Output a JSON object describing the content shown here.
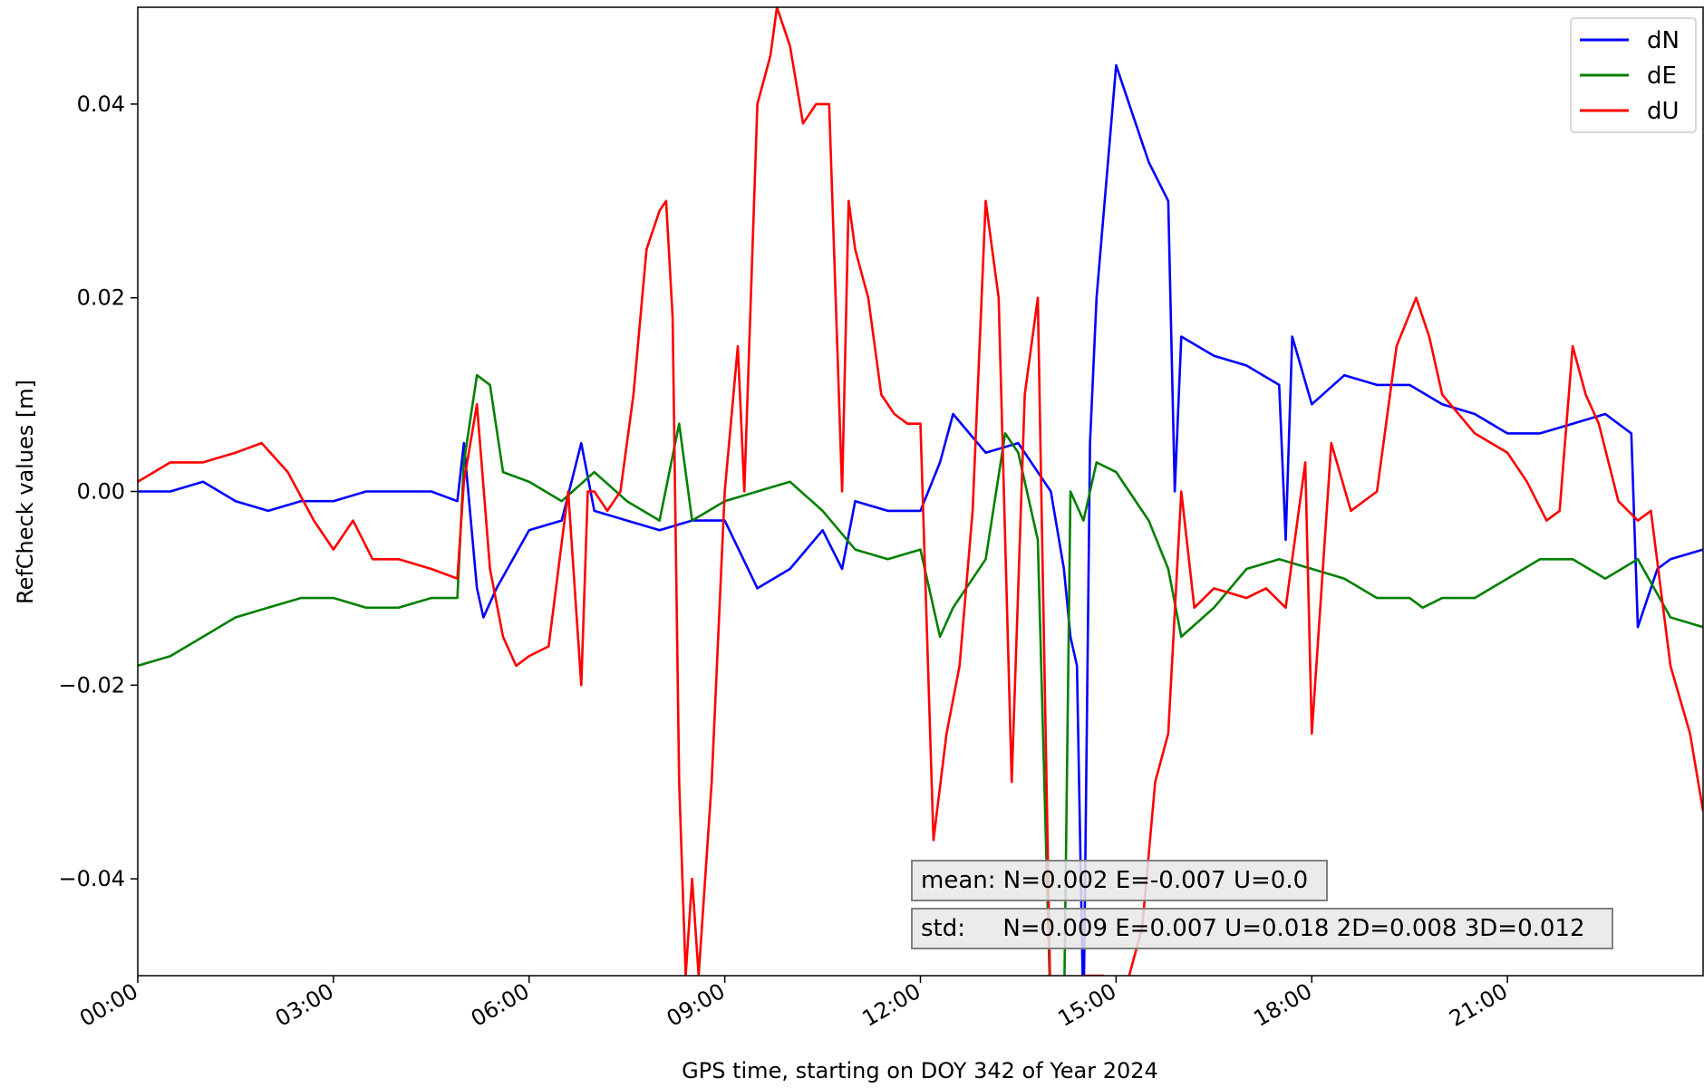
{
  "chart_data": {
    "type": "line",
    "xlabel": "GPS time, starting on DOY 342 of Year 2024",
    "ylabel": "RefCheck values [m]",
    "xlim_hours": [
      0,
      24
    ],
    "ylim": [
      -0.05,
      0.05
    ],
    "x_ticks": [
      {
        "hour": 0,
        "label": "00:00"
      },
      {
        "hour": 3,
        "label": "03:00"
      },
      {
        "hour": 6,
        "label": "06:00"
      },
      {
        "hour": 9,
        "label": "09:00"
      },
      {
        "hour": 12,
        "label": "12:00"
      },
      {
        "hour": 15,
        "label": "15:00"
      },
      {
        "hour": 18,
        "label": "18:00"
      },
      {
        "hour": 21,
        "label": "21:00"
      }
    ],
    "y_ticks": [
      {
        "value": 0.04,
        "label": "0.04"
      },
      {
        "value": 0.02,
        "label": "0.02"
      },
      {
        "value": 0.0,
        "label": "0.00"
      },
      {
        "value": -0.02,
        "label": "−0.02"
      },
      {
        "value": -0.04,
        "label": "−0.04"
      }
    ],
    "legend_position": "top-right",
    "grid": false,
    "series": [
      {
        "name": "dN",
        "color": "#0000ff",
        "x_hours": [
          0,
          0.5,
          1.0,
          1.5,
          2.0,
          2.5,
          3.0,
          3.5,
          4.0,
          4.5,
          4.9,
          5.0,
          5.2,
          5.3,
          5.5,
          6.0,
          6.5,
          6.8,
          7.0,
          7.5,
          8.0,
          8.5,
          9.0,
          9.5,
          10.0,
          10.5,
          10.8,
          11.0,
          11.5,
          12.0,
          12.3,
          12.5,
          13.0,
          13.5,
          14.0,
          14.2,
          14.3,
          14.4,
          14.5,
          14.6,
          14.7,
          15.0,
          15.2,
          15.5,
          15.8,
          15.9,
          16.0,
          16.5,
          17.0,
          17.5,
          17.6,
          17.7,
          18.0,
          18.5,
          19.0,
          19.5,
          20.0,
          20.5,
          21.0,
          21.5,
          22.0,
          22.5,
          22.9,
          23.0,
          23.3,
          23.5,
          24.0
        ],
        "values": [
          0.0,
          0.0,
          0.001,
          -0.001,
          -0.002,
          -0.001,
          -0.001,
          0.0,
          0.0,
          0.0,
          -0.001,
          0.005,
          -0.01,
          -0.013,
          -0.01,
          -0.004,
          -0.003,
          0.005,
          -0.002,
          -0.003,
          -0.004,
          -0.003,
          -0.003,
          -0.01,
          -0.008,
          -0.004,
          -0.008,
          -0.001,
          -0.002,
          -0.002,
          0.003,
          0.008,
          0.004,
          0.005,
          0.0,
          -0.008,
          -0.015,
          -0.018,
          -0.055,
          0.005,
          0.02,
          0.044,
          0.04,
          0.034,
          0.03,
          0.0,
          0.016,
          0.014,
          0.013,
          0.011,
          -0.005,
          0.016,
          0.009,
          0.012,
          0.011,
          0.011,
          0.009,
          0.008,
          0.006,
          0.006,
          0.007,
          0.008,
          0.006,
          -0.014,
          -0.008,
          -0.007,
          -0.006
        ]
      },
      {
        "name": "dE",
        "color": "#008000",
        "x_hours": [
          0,
          0.5,
          1.0,
          1.5,
          2.0,
          2.5,
          3.0,
          3.5,
          4.0,
          4.5,
          4.9,
          5.0,
          5.2,
          5.4,
          5.6,
          6.0,
          6.5,
          7.0,
          7.5,
          8.0,
          8.3,
          8.5,
          9.0,
          9.5,
          10.0,
          10.5,
          11.0,
          11.5,
          12.0,
          12.3,
          12.5,
          13.0,
          13.3,
          13.5,
          13.8,
          14.0,
          14.1,
          14.2,
          14.3,
          14.5,
          14.7,
          15.0,
          15.5,
          15.8,
          16.0,
          16.5,
          17.0,
          17.5,
          18.0,
          18.5,
          19.0,
          19.5,
          19.7,
          20.0,
          20.5,
          21.0,
          21.5,
          22.0,
          22.5,
          23.0,
          23.5,
          24.0
        ],
        "values": [
          -0.018,
          -0.017,
          -0.015,
          -0.013,
          -0.012,
          -0.011,
          -0.011,
          -0.012,
          -0.012,
          -0.011,
          -0.011,
          0.003,
          0.012,
          0.011,
          0.002,
          0.001,
          -0.001,
          0.002,
          -0.001,
          -0.003,
          0.007,
          -0.003,
          -0.001,
          0.0,
          0.001,
          -0.002,
          -0.006,
          -0.007,
          -0.006,
          -0.015,
          -0.012,
          -0.007,
          0.006,
          0.004,
          -0.005,
          -0.055,
          -0.055,
          -0.055,
          0.0,
          -0.003,
          0.003,
          0.002,
          -0.003,
          -0.008,
          -0.015,
          -0.012,
          -0.008,
          -0.007,
          -0.008,
          -0.009,
          -0.011,
          -0.011,
          -0.012,
          -0.011,
          -0.011,
          -0.009,
          -0.007,
          -0.007,
          -0.009,
          -0.007,
          -0.013,
          -0.014
        ]
      },
      {
        "name": "dU",
        "color": "#ff0000",
        "x_hours": [
          0,
          0.5,
          1.0,
          1.5,
          1.9,
          2.3,
          2.7,
          3.0,
          3.3,
          3.6,
          4.0,
          4.5,
          4.9,
          5.0,
          5.2,
          5.4,
          5.6,
          5.8,
          6.0,
          6.3,
          6.6,
          6.8,
          6.9,
          7.0,
          7.2,
          7.4,
          7.6,
          7.8,
          8.0,
          8.1,
          8.2,
          8.3,
          8.4,
          8.5,
          8.6,
          8.7,
          8.8,
          9.0,
          9.2,
          9.3,
          9.5,
          9.7,
          9.8,
          10.0,
          10.2,
          10.4,
          10.6,
          10.8,
          10.9,
          11.0,
          11.2,
          11.4,
          11.6,
          11.8,
          12.0,
          12.2,
          12.4,
          12.6,
          12.8,
          13.0,
          13.2,
          13.4,
          13.6,
          13.8,
          14.0,
          14.2,
          14.5,
          14.8,
          15.0,
          15.2,
          15.4,
          15.6,
          15.8,
          16.0,
          16.2,
          16.5,
          17.0,
          17.3,
          17.6,
          17.9,
          18.0,
          18.3,
          18.6,
          19.0,
          19.3,
          19.6,
          19.8,
          20.0,
          20.5,
          21.0,
          21.3,
          21.6,
          21.8,
          22.0,
          22.2,
          22.4,
          22.7,
          23.0,
          23.2,
          23.5,
          23.8,
          24.0
        ],
        "values": [
          0.001,
          0.003,
          0.003,
          0.004,
          0.005,
          0.002,
          -0.003,
          -0.006,
          -0.003,
          -0.007,
          -0.007,
          -0.008,
          -0.009,
          0.001,
          0.009,
          -0.008,
          -0.015,
          -0.018,
          -0.017,
          -0.016,
          0.0,
          -0.02,
          0.0,
          0.0,
          -0.002,
          0.0,
          0.01,
          0.025,
          0.029,
          0.03,
          0.018,
          -0.03,
          -0.05,
          -0.04,
          -0.05,
          -0.04,
          -0.03,
          0.0,
          0.015,
          0.0,
          0.04,
          0.045,
          0.05,
          0.046,
          0.038,
          0.04,
          0.04,
          0.0,
          0.03,
          0.025,
          0.02,
          0.01,
          0.008,
          0.007,
          0.007,
          -0.036,
          -0.025,
          -0.018,
          -0.002,
          0.03,
          0.02,
          -0.03,
          0.01,
          0.02,
          -0.055,
          -0.055,
          -0.05,
          -0.05,
          -0.054,
          -0.05,
          -0.045,
          -0.03,
          -0.025,
          0.0,
          -0.012,
          -0.01,
          -0.011,
          -0.01,
          -0.012,
          0.003,
          -0.025,
          0.005,
          -0.002,
          0.0,
          0.015,
          0.02,
          0.016,
          0.01,
          0.006,
          0.004,
          0.001,
          -0.003,
          -0.002,
          0.015,
          0.01,
          0.007,
          -0.001,
          -0.003,
          -0.002,
          -0.018,
          -0.025,
          -0.033
        ]
      }
    ],
    "legend": [
      {
        "name": "dN",
        "color": "#0000ff"
      },
      {
        "name": "dE",
        "color": "#008000"
      },
      {
        "name": "dU",
        "color": "#ff0000"
      }
    ],
    "annotations": {
      "mean_text": "mean: N=0.002 E=-0.007 U=0.0",
      "std_text": "std:     N=0.009 E=0.007 U=0.018 2D=0.008 3D=0.012"
    }
  }
}
